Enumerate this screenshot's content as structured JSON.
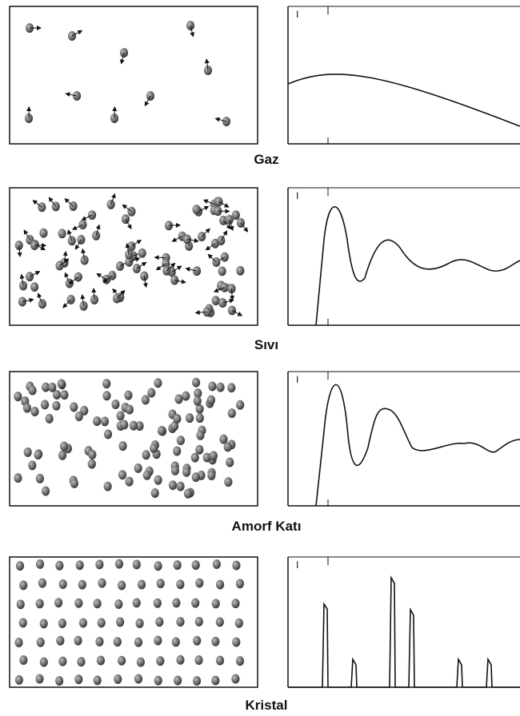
{
  "panels": [
    {
      "label": "Gaz",
      "axis_label": "I"
    },
    {
      "label": "Sıvı",
      "axis_label": "I"
    },
    {
      "label": "Amorf Katı",
      "axis_label": "I"
    },
    {
      "label": "Kristal",
      "axis_label": "I"
    }
  ]
}
